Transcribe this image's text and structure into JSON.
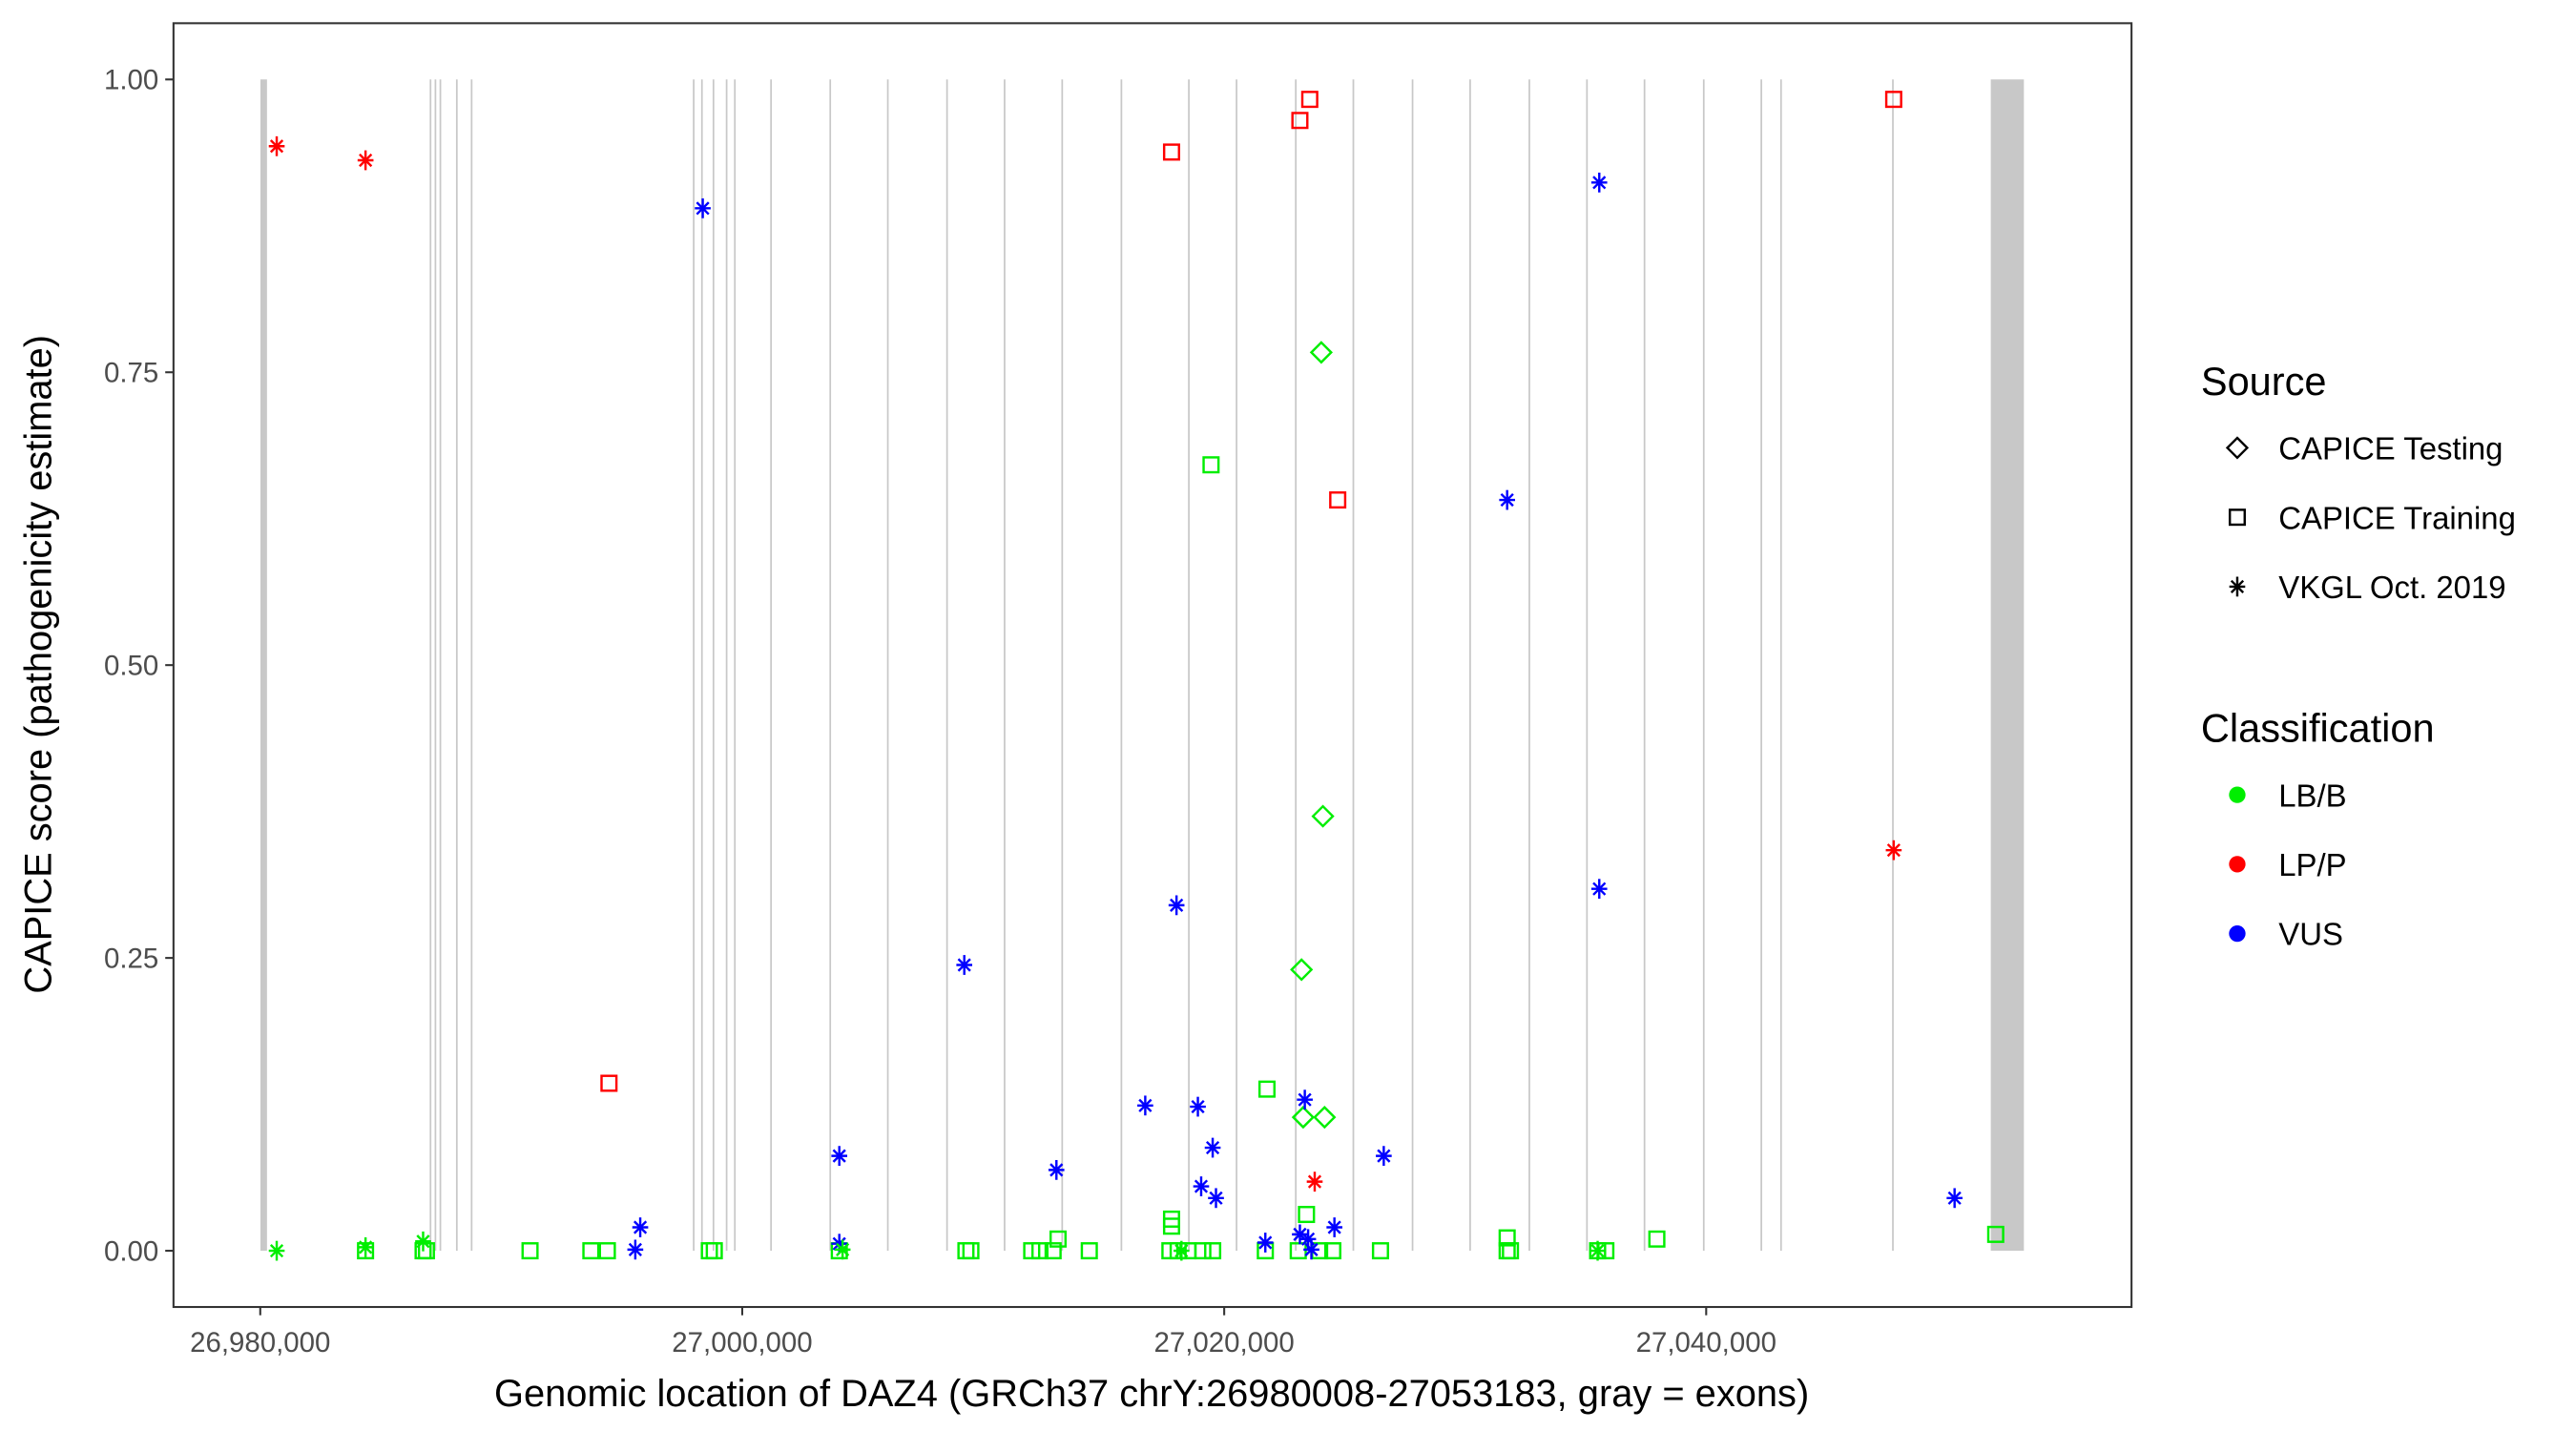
{
  "chart_data": {
    "type": "scatter",
    "xlabel": "Genomic location of DAZ4 (GRCh37 chrY:26980008-27053183, gray = exons)",
    "ylabel": "CAPICE score (pathogenicity estimate)",
    "xlim": [
      26976400,
      27057650
    ],
    "ylim": [
      -0.048,
      1.048
    ],
    "xticks": [
      26980000,
      27000000,
      27020000,
      27040000
    ],
    "xtick_labels": [
      "26,980,000",
      "27,000,000",
      "27,020,000",
      "27,040,000"
    ],
    "yticks": [
      0,
      0.25,
      0.5,
      0.75,
      1.0
    ],
    "ytick_labels": [
      "0.00",
      "0.25",
      "0.50",
      "0.75",
      "1.00"
    ],
    "grid": false,
    "exons": [
      [
        26980008,
        26980280
      ],
      [
        26987031,
        26987060
      ],
      [
        26987236,
        26987265
      ],
      [
        26987440,
        26987470
      ],
      [
        26988123,
        26988150
      ],
      [
        26988737,
        26988770
      ],
      [
        26997952,
        26997980
      ],
      [
        26998294,
        26998320
      ],
      [
        26998772,
        26998800
      ],
      [
        26999318,
        26999345
      ],
      [
        26999659,
        26999690
      ],
      [
        27001161,
        27001190
      ],
      [
        27003618,
        27003645
      ],
      [
        27006007,
        27006035
      ],
      [
        27008464,
        27008490
      ],
      [
        27010853,
        27010880
      ],
      [
        27013243,
        27013270
      ],
      [
        27015700,
        27015730
      ],
      [
        27018499,
        27018530
      ],
      [
        27020478,
        27020505
      ],
      [
        27022936,
        27022965
      ],
      [
        27025325,
        27025355
      ],
      [
        27027782,
        27027810
      ],
      [
        27030171,
        27030200
      ],
      [
        27032629,
        27032655
      ],
      [
        27035018,
        27035045
      ],
      [
        27037407,
        27037435
      ],
      [
        27039865,
        27039890
      ],
      [
        27042254,
        27042280
      ],
      [
        27043073,
        27043100
      ],
      [
        27047714,
        27047740
      ],
      [
        27051810,
        27053183
      ]
    ],
    "colors": {
      "LB/B": "#00ee00",
      "LP/P": "#ff0000",
      "VUS": "#0000ff"
    },
    "legend": {
      "placement": "right",
      "source_title": "Source",
      "source_items": [
        {
          "label": "CAPICE Testing",
          "shape": "diamond"
        },
        {
          "label": "CAPICE Training",
          "shape": "square"
        },
        {
          "label": "VKGL Oct. 2019",
          "shape": "asterisk"
        }
      ],
      "class_title": "Classification",
      "class_items": [
        {
          "label": "LB/B",
          "color": "#00ee00"
        },
        {
          "label": "LP/P",
          "color": "#ff0000"
        },
        {
          "label": "VUS",
          "color": "#0000ff"
        }
      ]
    },
    "series": [
      {
        "source": "CAPICE Testing",
        "class": "LB/B",
        "points": [
          [
            27024028,
            0.767
          ],
          [
            27024096,
            0.371
          ],
          [
            27023209,
            0.24
          ],
          [
            27023277,
            0.114
          ],
          [
            27024165,
            0.114
          ]
        ]
      },
      {
        "source": "CAPICE Training",
        "class": "LP/P",
        "points": [
          [
            27017816,
            0.938
          ],
          [
            27023550,
            0.983
          ],
          [
            27023141,
            0.965
          ],
          [
            27024711,
            0.641
          ],
          [
            27047782,
            0.983
          ],
          [
            26994471,
            0.143
          ]
        ]
      },
      {
        "source": "CAPICE Training",
        "class": "LB/B",
        "points": [
          [
            27019454,
            0.671
          ],
          [
            27021775,
            0.138
          ],
          [
            27017816,
            0.027
          ],
          [
            27017816,
            0.021
          ],
          [
            27023414,
            0.031
          ],
          [
            27013106,
            0.01
          ],
          [
            27031741,
            0.011
          ],
          [
            27037953,
            0.01
          ],
          [
            27052015,
            0.014
          ],
          [
            26984369,
            0.0
          ],
          [
            26986758,
            0.0
          ],
          [
            26986895,
            0.0
          ],
          [
            26991195,
            0.0
          ],
          [
            26993720,
            0.0
          ],
          [
            26994403,
            0.0
          ],
          [
            26998636,
            0.0
          ],
          [
            26998840,
            0.0
          ],
          [
            27004028,
            0.0
          ],
          [
            27009283,
            0.0
          ],
          [
            27009488,
            0.0
          ],
          [
            27012013,
            0.0
          ],
          [
            27012354,
            0.0
          ],
          [
            27012900,
            0.0
          ],
          [
            27014402,
            0.0
          ],
          [
            27017747,
            0.0
          ],
          [
            27018089,
            0.0
          ],
          [
            27018499,
            0.0
          ],
          [
            27019113,
            0.0
          ],
          [
            27019522,
            0.0
          ],
          [
            27021707,
            0.0
          ],
          [
            27023072,
            0.0
          ],
          [
            27023960,
            0.0
          ],
          [
            27024506,
            0.0
          ],
          [
            27026485,
            0.0
          ],
          [
            27031741,
            0.0
          ],
          [
            27031878,
            0.0
          ],
          [
            27035496,
            0.0
          ],
          [
            27035837,
            0.0
          ]
        ]
      },
      {
        "source": "VKGL Oct. 2019",
        "class": "LP/P",
        "points": [
          [
            26980683,
            0.943
          ],
          [
            26984369,
            0.931
          ],
          [
            27023755,
            0.059
          ],
          [
            27047782,
            0.342
          ]
        ]
      },
      {
        "source": "VKGL Oct. 2019",
        "class": "VUS",
        "points": [
          [
            26998362,
            0.89
          ],
          [
            27035564,
            0.912
          ],
          [
            27031741,
            0.641
          ],
          [
            27035564,
            0.309
          ],
          [
            27018021,
            0.295
          ],
          [
            27009215,
            0.244
          ],
          [
            27016724,
            0.124
          ],
          [
            27018908,
            0.123
          ],
          [
            27023345,
            0.129
          ],
          [
            27004028,
            0.081
          ],
          [
            27026621,
            0.081
          ],
          [
            27013038,
            0.069
          ],
          [
            27019522,
            0.088
          ],
          [
            27019044,
            0.055
          ],
          [
            27019659,
            0.045
          ],
          [
            27050308,
            0.045
          ],
          [
            26995768,
            0.02
          ],
          [
            26995563,
            0.001
          ],
          [
            27004028,
            0.006
          ],
          [
            27021707,
            0.007
          ],
          [
            27023482,
            0.01
          ],
          [
            27023618,
            0.001
          ],
          [
            27024574,
            0.02
          ],
          [
            27023141,
            0.014
          ]
        ]
      },
      {
        "source": "VKGL Oct. 2019",
        "class": "LB/B",
        "points": [
          [
            26980683,
            0.0
          ],
          [
            26984369,
            0.003
          ],
          [
            26986758,
            0.008
          ],
          [
            27004164,
            0.001
          ],
          [
            27035496,
            0.0
          ],
          [
            27018226,
            0.0
          ]
        ]
      }
    ]
  }
}
